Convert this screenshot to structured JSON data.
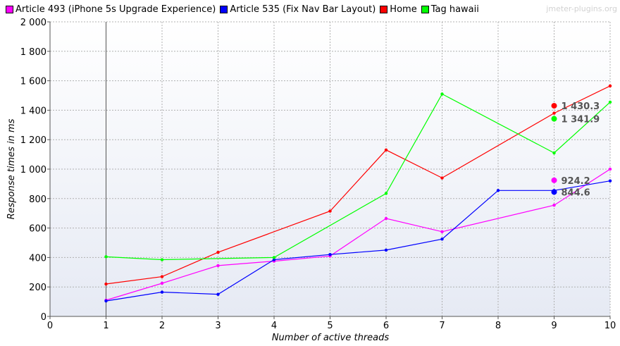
{
  "watermark": "jmeter-plugins.org",
  "chart_data": {
    "type": "line",
    "xlabel": "Number of active threads",
    "ylabel": "Response times in ms",
    "xlim": [
      0,
      10
    ],
    "ylim": [
      0,
      2000
    ],
    "x_ticks": [
      0,
      1,
      2,
      3,
      4,
      5,
      6,
      7,
      8,
      9,
      10
    ],
    "y_ticks": [
      0,
      200,
      400,
      600,
      800,
      1000,
      1200,
      1400,
      1600,
      1800,
      2000
    ],
    "y_tick_labels": [
      "0",
      "200",
      "400",
      "600",
      "800",
      "1 000",
      "1 200",
      "1 400",
      "1 600",
      "1 800",
      "2 000"
    ],
    "grid": true,
    "legend_position": "top",
    "series": [
      {
        "name": "Article 493 (iPhone 5s Upgrade Experience)",
        "color": "#ff00ff",
        "x": [
          1,
          2,
          3,
          4,
          5,
          6,
          7,
          9,
          10
        ],
        "y": [
          110,
          225,
          345,
          375,
          410,
          665,
          575,
          755,
          1000
        ],
        "average": 924.2,
        "average_label": "924.2"
      },
      {
        "name": "Article 535 (Fix Nav Bar Layout)",
        "color": "#0000ff",
        "x": [
          1,
          2,
          3,
          4,
          5,
          6,
          7,
          8,
          9,
          10
        ],
        "y": [
          105,
          165,
          150,
          385,
          420,
          450,
          525,
          855,
          855,
          920
        ],
        "average": 844.6,
        "average_label": "844.6"
      },
      {
        "name": "Home",
        "color": "#ff0000",
        "x": [
          1,
          2,
          3,
          5,
          6,
          7,
          9,
          10
        ],
        "y": [
          220,
          270,
          435,
          715,
          1130,
          940,
          1380,
          1565
        ],
        "average": 1430.3,
        "average_label": "1 430.3"
      },
      {
        "name": "Tag hawaii",
        "color": "#00ff00",
        "x": [
          1,
          2,
          4,
          6,
          7,
          9,
          10
        ],
        "y": [
          405,
          385,
          400,
          835,
          1510,
          1110,
          1455
        ],
        "average": 1341.9,
        "average_label": "1 341.9"
      }
    ],
    "vertical_marker_x": 1
  }
}
